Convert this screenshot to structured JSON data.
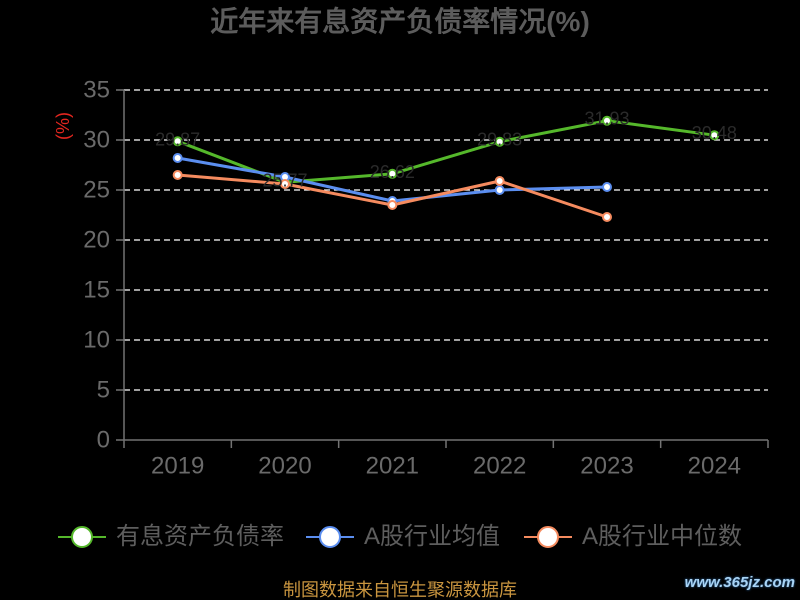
{
  "chart_data": {
    "type": "line",
    "title": "近年来有息资产负债率情况(%)",
    "xlabel": "",
    "ylabel": "(%)",
    "categories": [
      "2019",
      "2020",
      "2021",
      "2022",
      "2023",
      "2024"
    ],
    "ylim": [
      0,
      35
    ],
    "y_ticks": [
      0,
      5,
      10,
      15,
      20,
      25,
      30,
      35
    ],
    "grid": true,
    "legend_position": "bottom",
    "series": [
      {
        "name": "有息资产负债率",
        "color": "#55b82b",
        "data_labels": true,
        "values": [
          29.87,
          25.77,
          26.62,
          29.83,
          31.93,
          30.48
        ]
      },
      {
        "name": "A股行业均值",
        "color": "#5b8ef0",
        "data_labels": false,
        "values": [
          28.2,
          26.3,
          23.9,
          25.0,
          25.3,
          null
        ]
      },
      {
        "name": "A股行业中位数",
        "color": "#f58b5f",
        "data_labels": false,
        "values": [
          26.5,
          25.6,
          23.5,
          25.9,
          22.3,
          null
        ]
      }
    ]
  },
  "footer": "制图数据来自恒生聚源数据库",
  "watermark": "www.365jz.com",
  "colors": {
    "background": "#000000",
    "title": "#5c5c5c",
    "axis_text": "#6a6a6a",
    "axis_line": "#737373",
    "grid": "#ffffff",
    "ylabel": "#e3261f",
    "legend_text": "#5e5e5e",
    "data_label": "#2b2b2b",
    "footer": "#c9953f",
    "watermark": "#a9d4f5"
  }
}
